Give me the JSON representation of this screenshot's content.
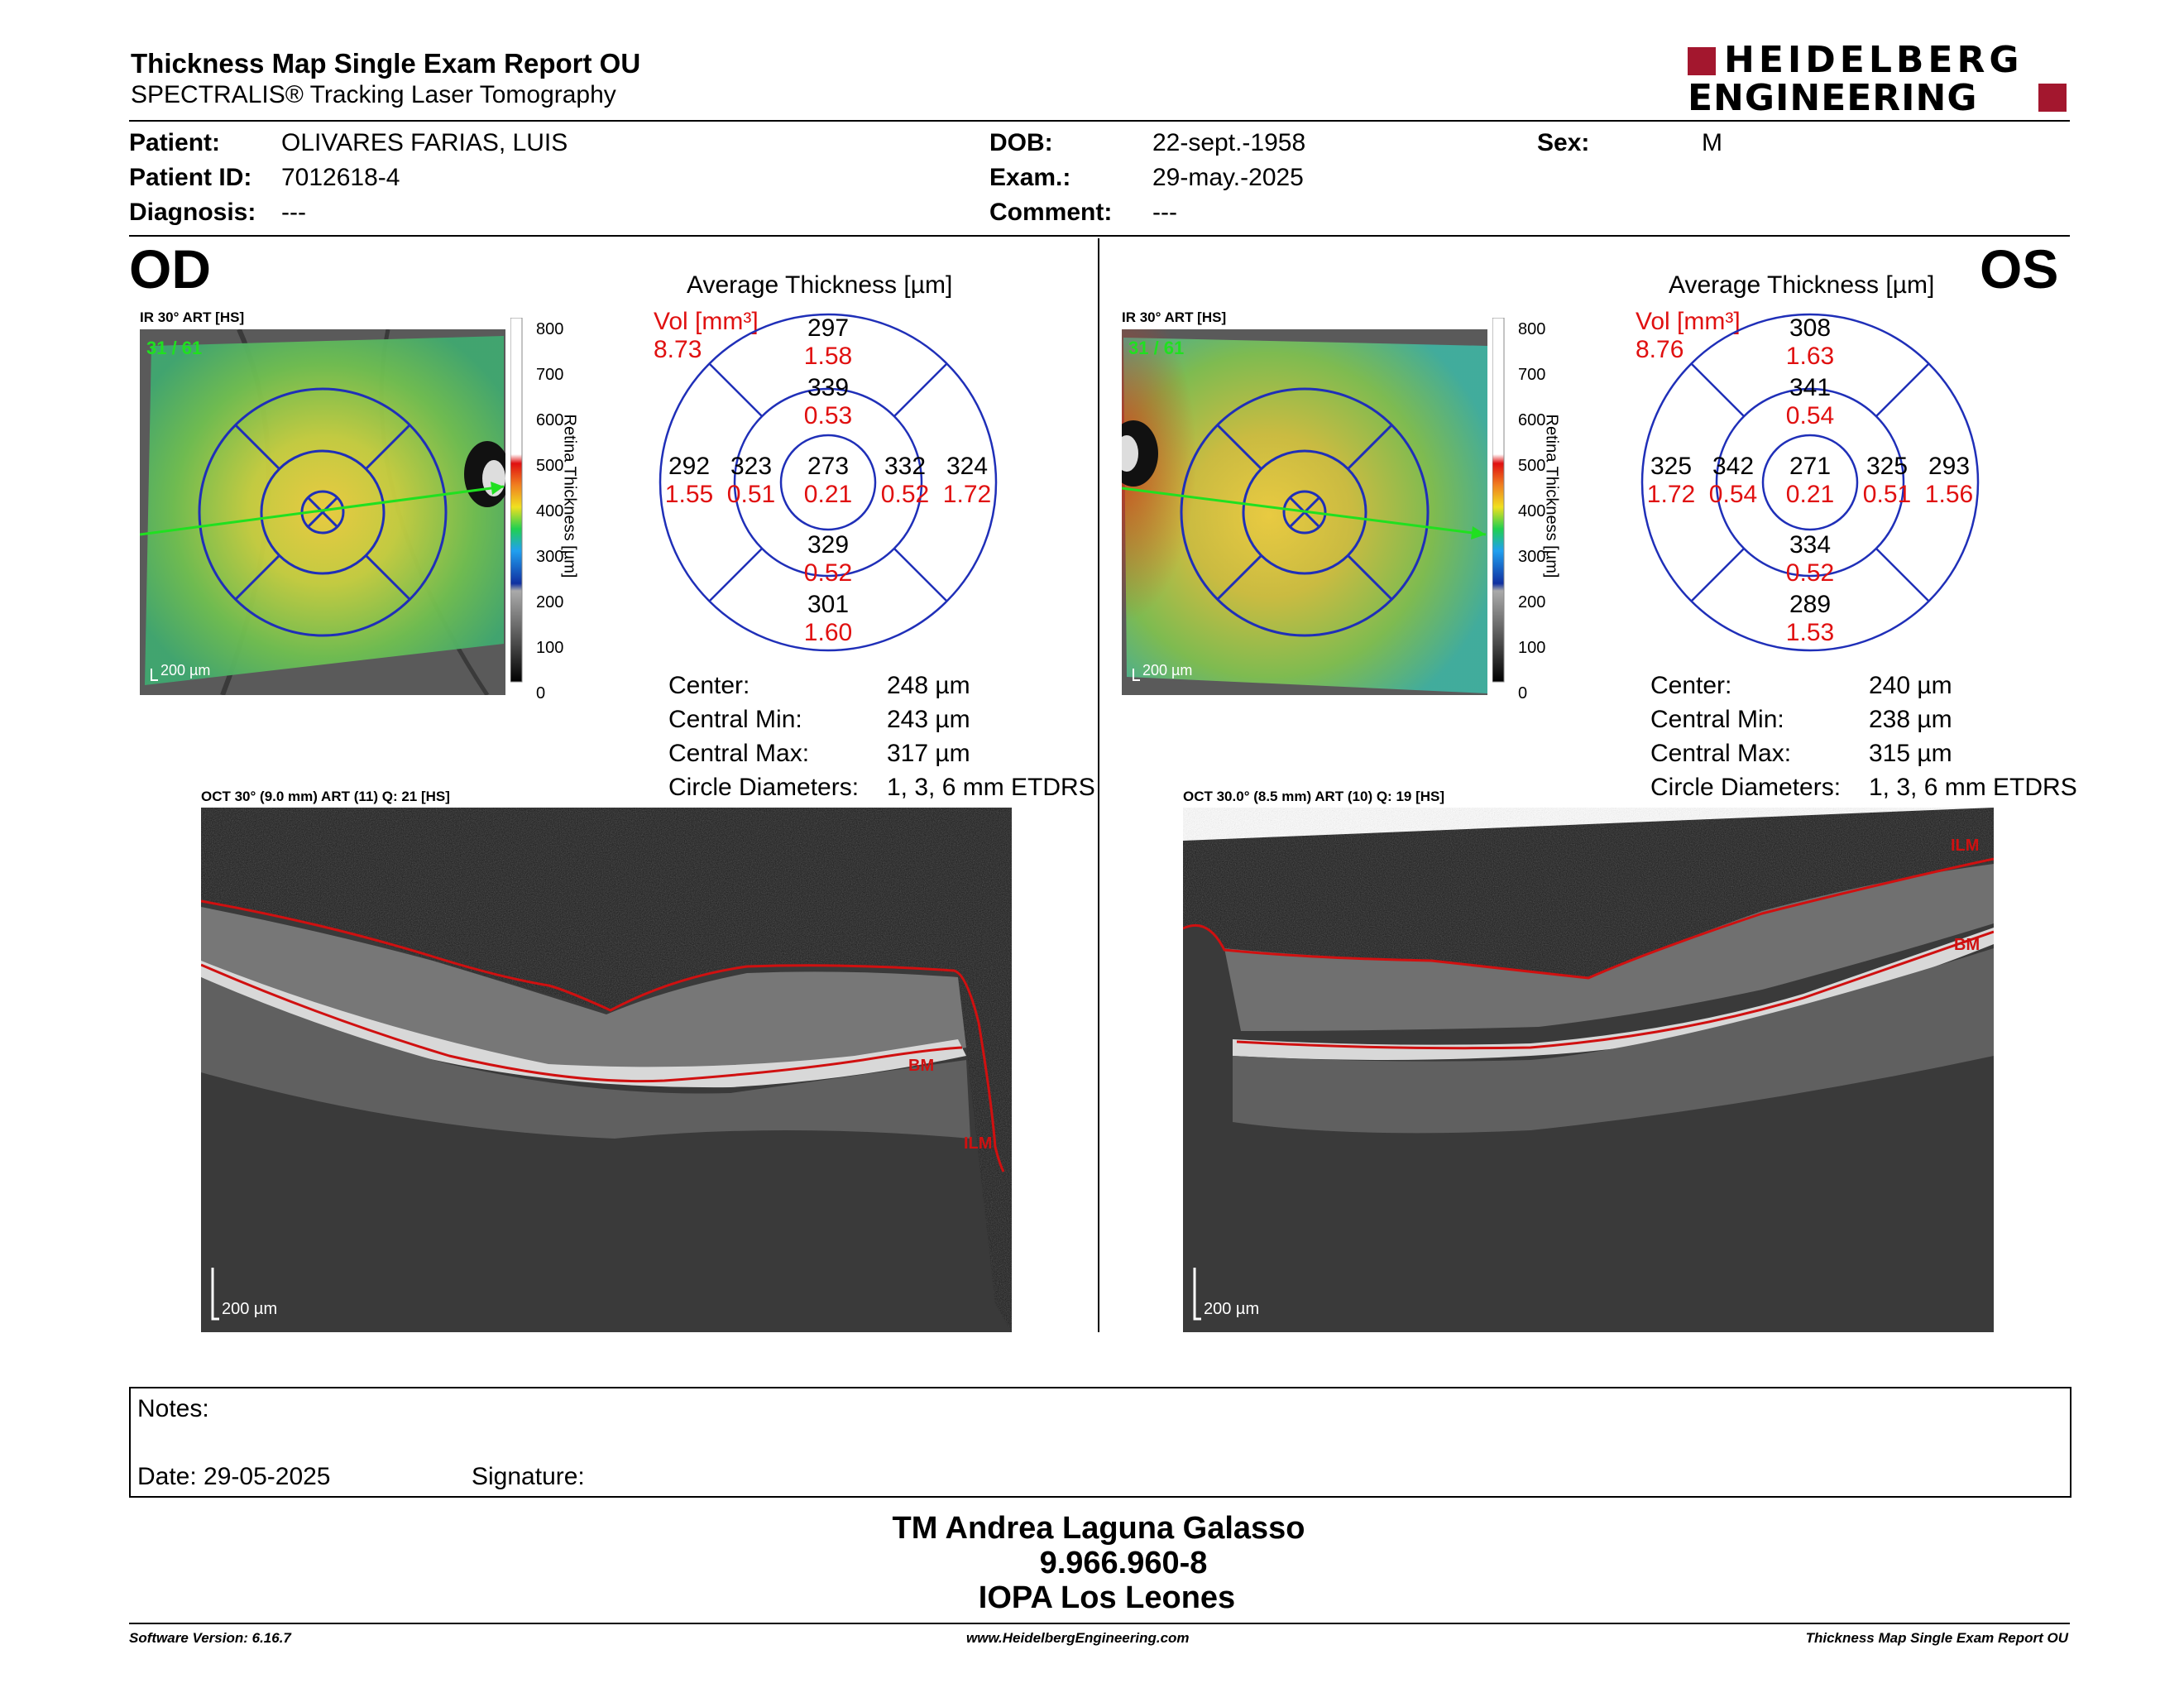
{
  "header": {
    "title": "Thickness Map Single Exam Report OU",
    "subtitle": "SPECTRALIS® Tracking Laser Tomography",
    "logo_line1": "HEIDELBERG",
    "logo_line2": "ENGINEERING",
    "brand_color": "#a3172e"
  },
  "patient": {
    "patient_label": "Patient:",
    "patient_value": "OLIVARES FARIAS, LUIS",
    "id_label": "Patient ID:",
    "id_value": "7012618-4",
    "diagnosis_label": "Diagnosis:",
    "diagnosis_value": "---",
    "dob_label": "DOB:",
    "dob_value": "22-sept.-1958",
    "exam_label": "Exam.:",
    "exam_value": "29-may.-2025",
    "comment_label": "Comment:",
    "comment_value": "---",
    "sex_label": "Sex:",
    "sex_value": "M"
  },
  "od": {
    "eye_label": "OD",
    "ir_label": "IR 30° ART [HS]",
    "frame_counter": "31 / 61",
    "scale_bar": "200 µm",
    "avg_title": "Average Thickness [µm]",
    "vol_label": "Vol [mm³]",
    "vol_value": "8.73",
    "etdrs": {
      "center_t": "273",
      "center_v": "0.21",
      "inner_sup_t": "339",
      "inner_sup_v": "0.53",
      "inner_inf_t": "329",
      "inner_inf_v": "0.52",
      "inner_left_t": "323",
      "inner_left_v": "0.51",
      "inner_right_t": "332",
      "inner_right_v": "0.52",
      "outer_sup_t": "297",
      "outer_sup_v": "1.58",
      "outer_inf_t": "301",
      "outer_inf_v": "1.60",
      "outer_left_t": "292",
      "outer_left_v": "1.55",
      "outer_right_t": "324",
      "outer_right_v": "1.72"
    },
    "stats": {
      "center_label": "Center:",
      "center_value": "248 µm",
      "min_label": "Central Min:",
      "min_value": "243 µm",
      "max_label": "Central Max:",
      "max_value": "317 µm",
      "diam_label": "Circle Diameters:",
      "diam_value": "1, 3, 6 mm ETDRS"
    },
    "oct_label": "OCT 30° (9.0 mm) ART (11) Q: 21 [HS]",
    "oct_scale": "200 µm",
    "ilm_label": "ILM",
    "bm_label": "BM"
  },
  "os": {
    "eye_label": "OS",
    "ir_label": "IR 30° ART [HS]",
    "frame_counter": "31 / 61",
    "scale_bar": "200 µm",
    "avg_title": "Average Thickness [µm]",
    "vol_label": "Vol [mm³]",
    "vol_value": "8.76",
    "etdrs": {
      "center_t": "271",
      "center_v": "0.21",
      "inner_sup_t": "341",
      "inner_sup_v": "0.54",
      "inner_inf_t": "334",
      "inner_inf_v": "0.52",
      "inner_left_t": "342",
      "inner_left_v": "0.54",
      "inner_right_t": "325",
      "inner_right_v": "0.51",
      "outer_sup_t": "308",
      "outer_sup_v": "1.63",
      "outer_inf_t": "289",
      "outer_inf_v": "1.53",
      "outer_left_t": "325",
      "outer_left_v": "1.72",
      "outer_right_t": "293",
      "outer_right_v": "1.56"
    },
    "stats": {
      "center_label": "Center:",
      "center_value": "240 µm",
      "min_label": "Central Min:",
      "min_value": "238 µm",
      "max_label": "Central Max:",
      "max_value": "315 µm",
      "diam_label": "Circle Diameters:",
      "diam_value": "1, 3, 6 mm ETDRS"
    },
    "oct_label": "OCT 30.0° (8.5 mm) ART (10) Q: 19 [HS]",
    "oct_scale": "200 µm",
    "ilm_label": "ILM",
    "bm_label": "BM"
  },
  "colorbar": {
    "ticks": [
      "800",
      "700",
      "600",
      "500",
      "400",
      "300",
      "200",
      "100",
      "0"
    ],
    "title": "Retina Thickness [µm]"
  },
  "notes": {
    "notes_label": "Notes:",
    "date_label": "Date: 29-05-2025",
    "signature_label": "Signature:"
  },
  "signature_block": {
    "name": "TM Andrea Laguna Galasso",
    "id": "9.966.960-8",
    "institution": "IOPA Los Leones"
  },
  "footer": {
    "software": "Software Version: 6.16.7",
    "website": "www.HeidelbergEngineering.com",
    "report_name": "Thickness Map Single Exam Report OU"
  },
  "colors": {
    "etdrs_ring": "#1f2fb8",
    "volume_red": "#e01010",
    "segmentation_red": "#d01010"
  }
}
